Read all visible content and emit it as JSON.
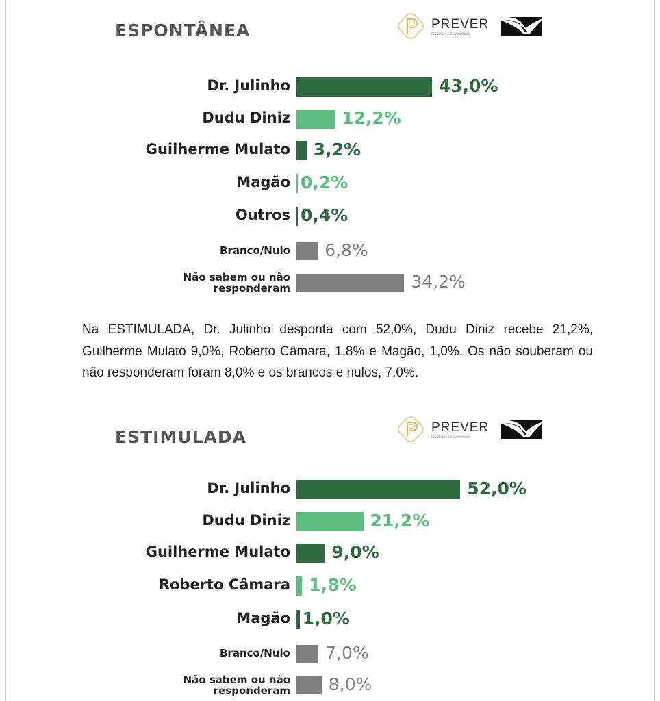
{
  "colors": {
    "dark_green": "#2e6b3f",
    "light_green": "#5cbf80",
    "gray": "#808080"
  },
  "logo": {
    "name": "PREVER",
    "subtitle": "PESQUISAS E CONSULTORIA"
  },
  "paragraph": "Na ESTIMULADA, Dr. Julinho desponta com 52,0%, Dudu Diniz recebe 21,2%, Guilherme Mulato 9,0%, Roberto Câmara, 1,8% e Magão, 1,0%. Os não souberam ou não responderam foram 8,0% e os brancos e nulos, 7,0%.",
  "chart_data": [
    {
      "type": "bar",
      "orientation": "horizontal",
      "title": "ESPONTÂNEA",
      "categories": [
        "Dr. Julinho",
        "Dudu Diniz",
        "Guilherme Mulato",
        "Magão",
        "Outros",
        "Branco/Nulo",
        "Não sabem ou não responderam"
      ],
      "values": [
        43.0,
        12.2,
        3.2,
        0.2,
        0.4,
        6.8,
        34.2
      ],
      "labels": [
        "43,0%",
        "12,2%",
        "3,2%",
        "0,2%",
        "0,4%",
        "6,8%",
        "34,2%"
      ],
      "bar_colors": [
        "dark_green",
        "light_green",
        "dark_green",
        "light_green",
        "dark_green",
        "gray",
        "gray"
      ]
    },
    {
      "type": "bar",
      "orientation": "horizontal",
      "title": "ESTIMULADA",
      "categories": [
        "Dr. Julinho",
        "Dudu Diniz",
        "Guilherme Mulato",
        "Roberto Câmara",
        "Magão",
        "Branco/Nulo",
        "Não sabem ou não responderam"
      ],
      "values": [
        52.0,
        21.2,
        9.0,
        1.8,
        1.0,
        7.0,
        8.0
      ],
      "labels": [
        "52,0%",
        "21,2%",
        "9,0%",
        "1,8%",
        "1,0%",
        "7,0%",
        "8,0%"
      ],
      "bar_colors": [
        "dark_green",
        "light_green",
        "dark_green",
        "light_green",
        "dark_green",
        "gray",
        "gray"
      ]
    }
  ]
}
